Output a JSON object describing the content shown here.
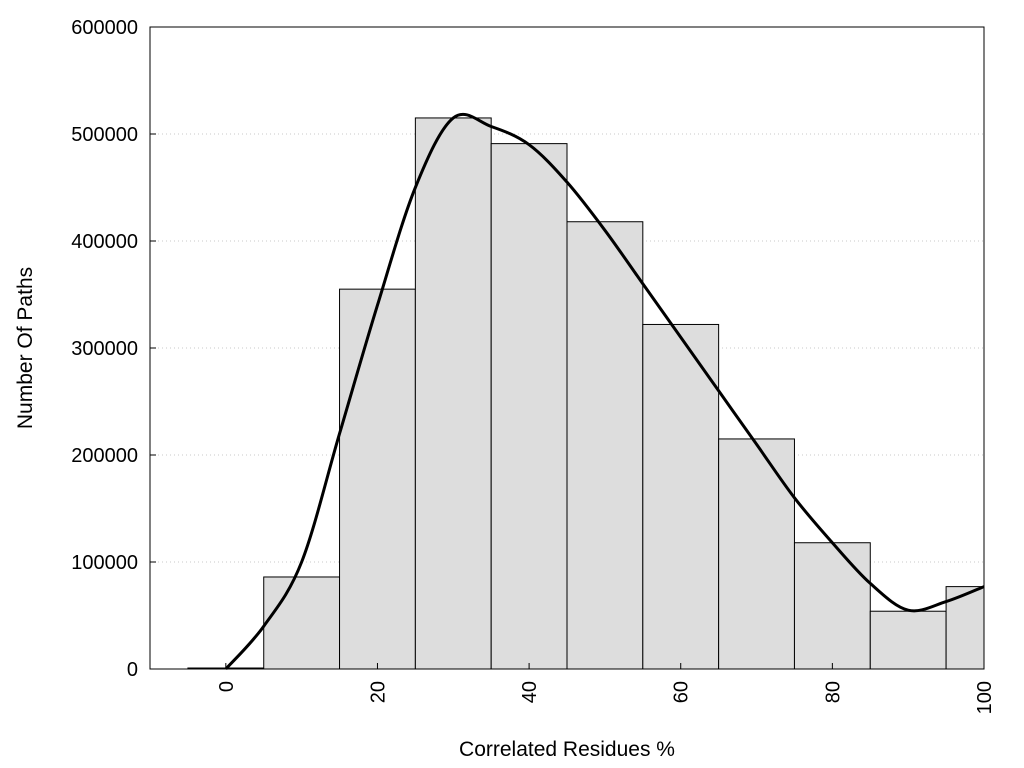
{
  "chart_data": {
    "type": "bar",
    "title": "",
    "xlabel": "Correlated Residues %",
    "ylabel": "Number Of Paths",
    "xlim": [
      -10,
      100
    ],
    "ylim": [
      0,
      600000
    ],
    "grid": "horizontal dotted",
    "x_ticks": [
      "0",
      "20",
      "40",
      "60",
      "80",
      "100"
    ],
    "y_ticks": [
      "0",
      "100000",
      "200000",
      "300000",
      "400000",
      "500000",
      "600000"
    ],
    "bar_width": 10,
    "bar_color": "#dddddd",
    "bars": [
      {
        "x": 0,
        "value": 0
      },
      {
        "x": 10,
        "value": 86000
      },
      {
        "x": 20,
        "value": 355000
      },
      {
        "x": 30,
        "value": 515000
      },
      {
        "x": 40,
        "value": 491000
      },
      {
        "x": 50,
        "value": 418000
      },
      {
        "x": 60,
        "value": 322000
      },
      {
        "x": 70,
        "value": 215000
      },
      {
        "x": 80,
        "value": 118000
      },
      {
        "x": 90,
        "value": 54000
      },
      {
        "x": 100,
        "value": 77000
      }
    ],
    "curve": {
      "color": "#000000",
      "points": [
        [
          0,
          0
        ],
        [
          5,
          40000
        ],
        [
          10,
          100000
        ],
        [
          15,
          220000
        ],
        [
          20,
          340000
        ],
        [
          25,
          450000
        ],
        [
          30,
          515000
        ],
        [
          35,
          507000
        ],
        [
          40,
          490000
        ],
        [
          45,
          455000
        ],
        [
          50,
          410000
        ],
        [
          55,
          360000
        ],
        [
          60,
          310000
        ],
        [
          65,
          260000
        ],
        [
          70,
          210000
        ],
        [
          75,
          160000
        ],
        [
          80,
          118000
        ],
        [
          85,
          80000
        ],
        [
          90,
          55000
        ],
        [
          95,
          63000
        ],
        [
          100,
          77000
        ]
      ]
    }
  }
}
